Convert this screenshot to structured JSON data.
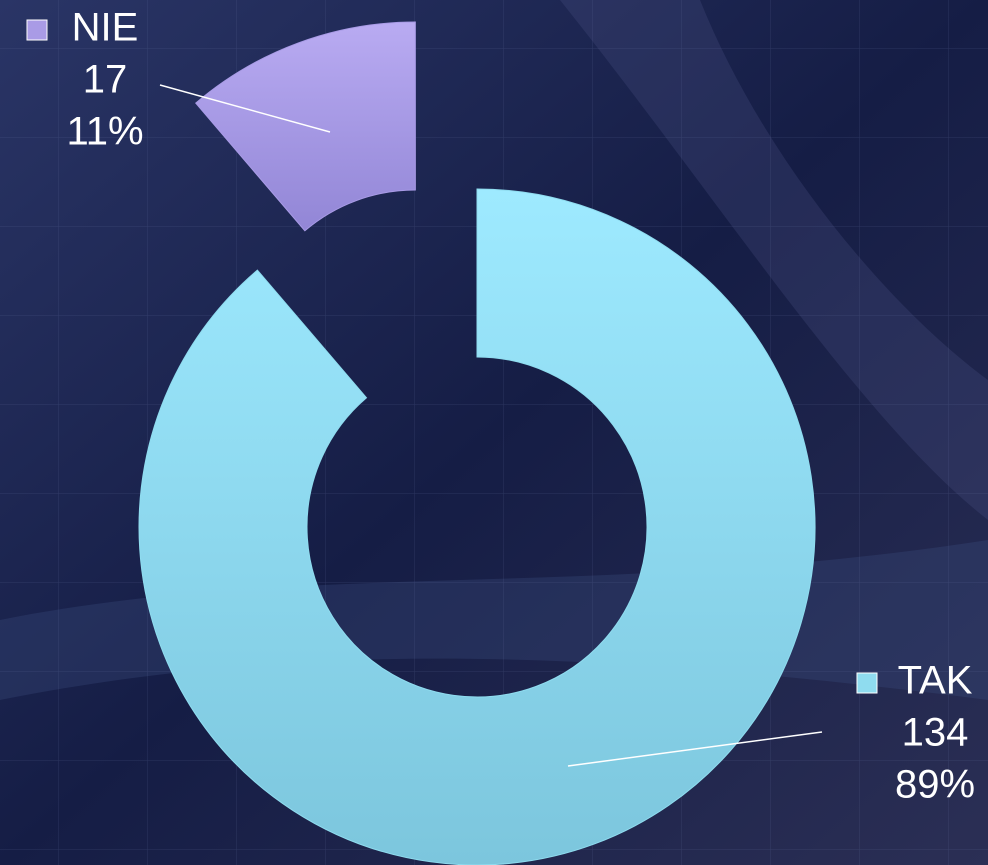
{
  "chart_data": {
    "type": "donut",
    "categories": [
      "TAK",
      "NIE"
    ],
    "values": [
      134,
      17
    ],
    "percent_labels": [
      "89%",
      "11%"
    ],
    "colors": [
      "#8fdcef",
      "#a99be6"
    ]
  }
}
